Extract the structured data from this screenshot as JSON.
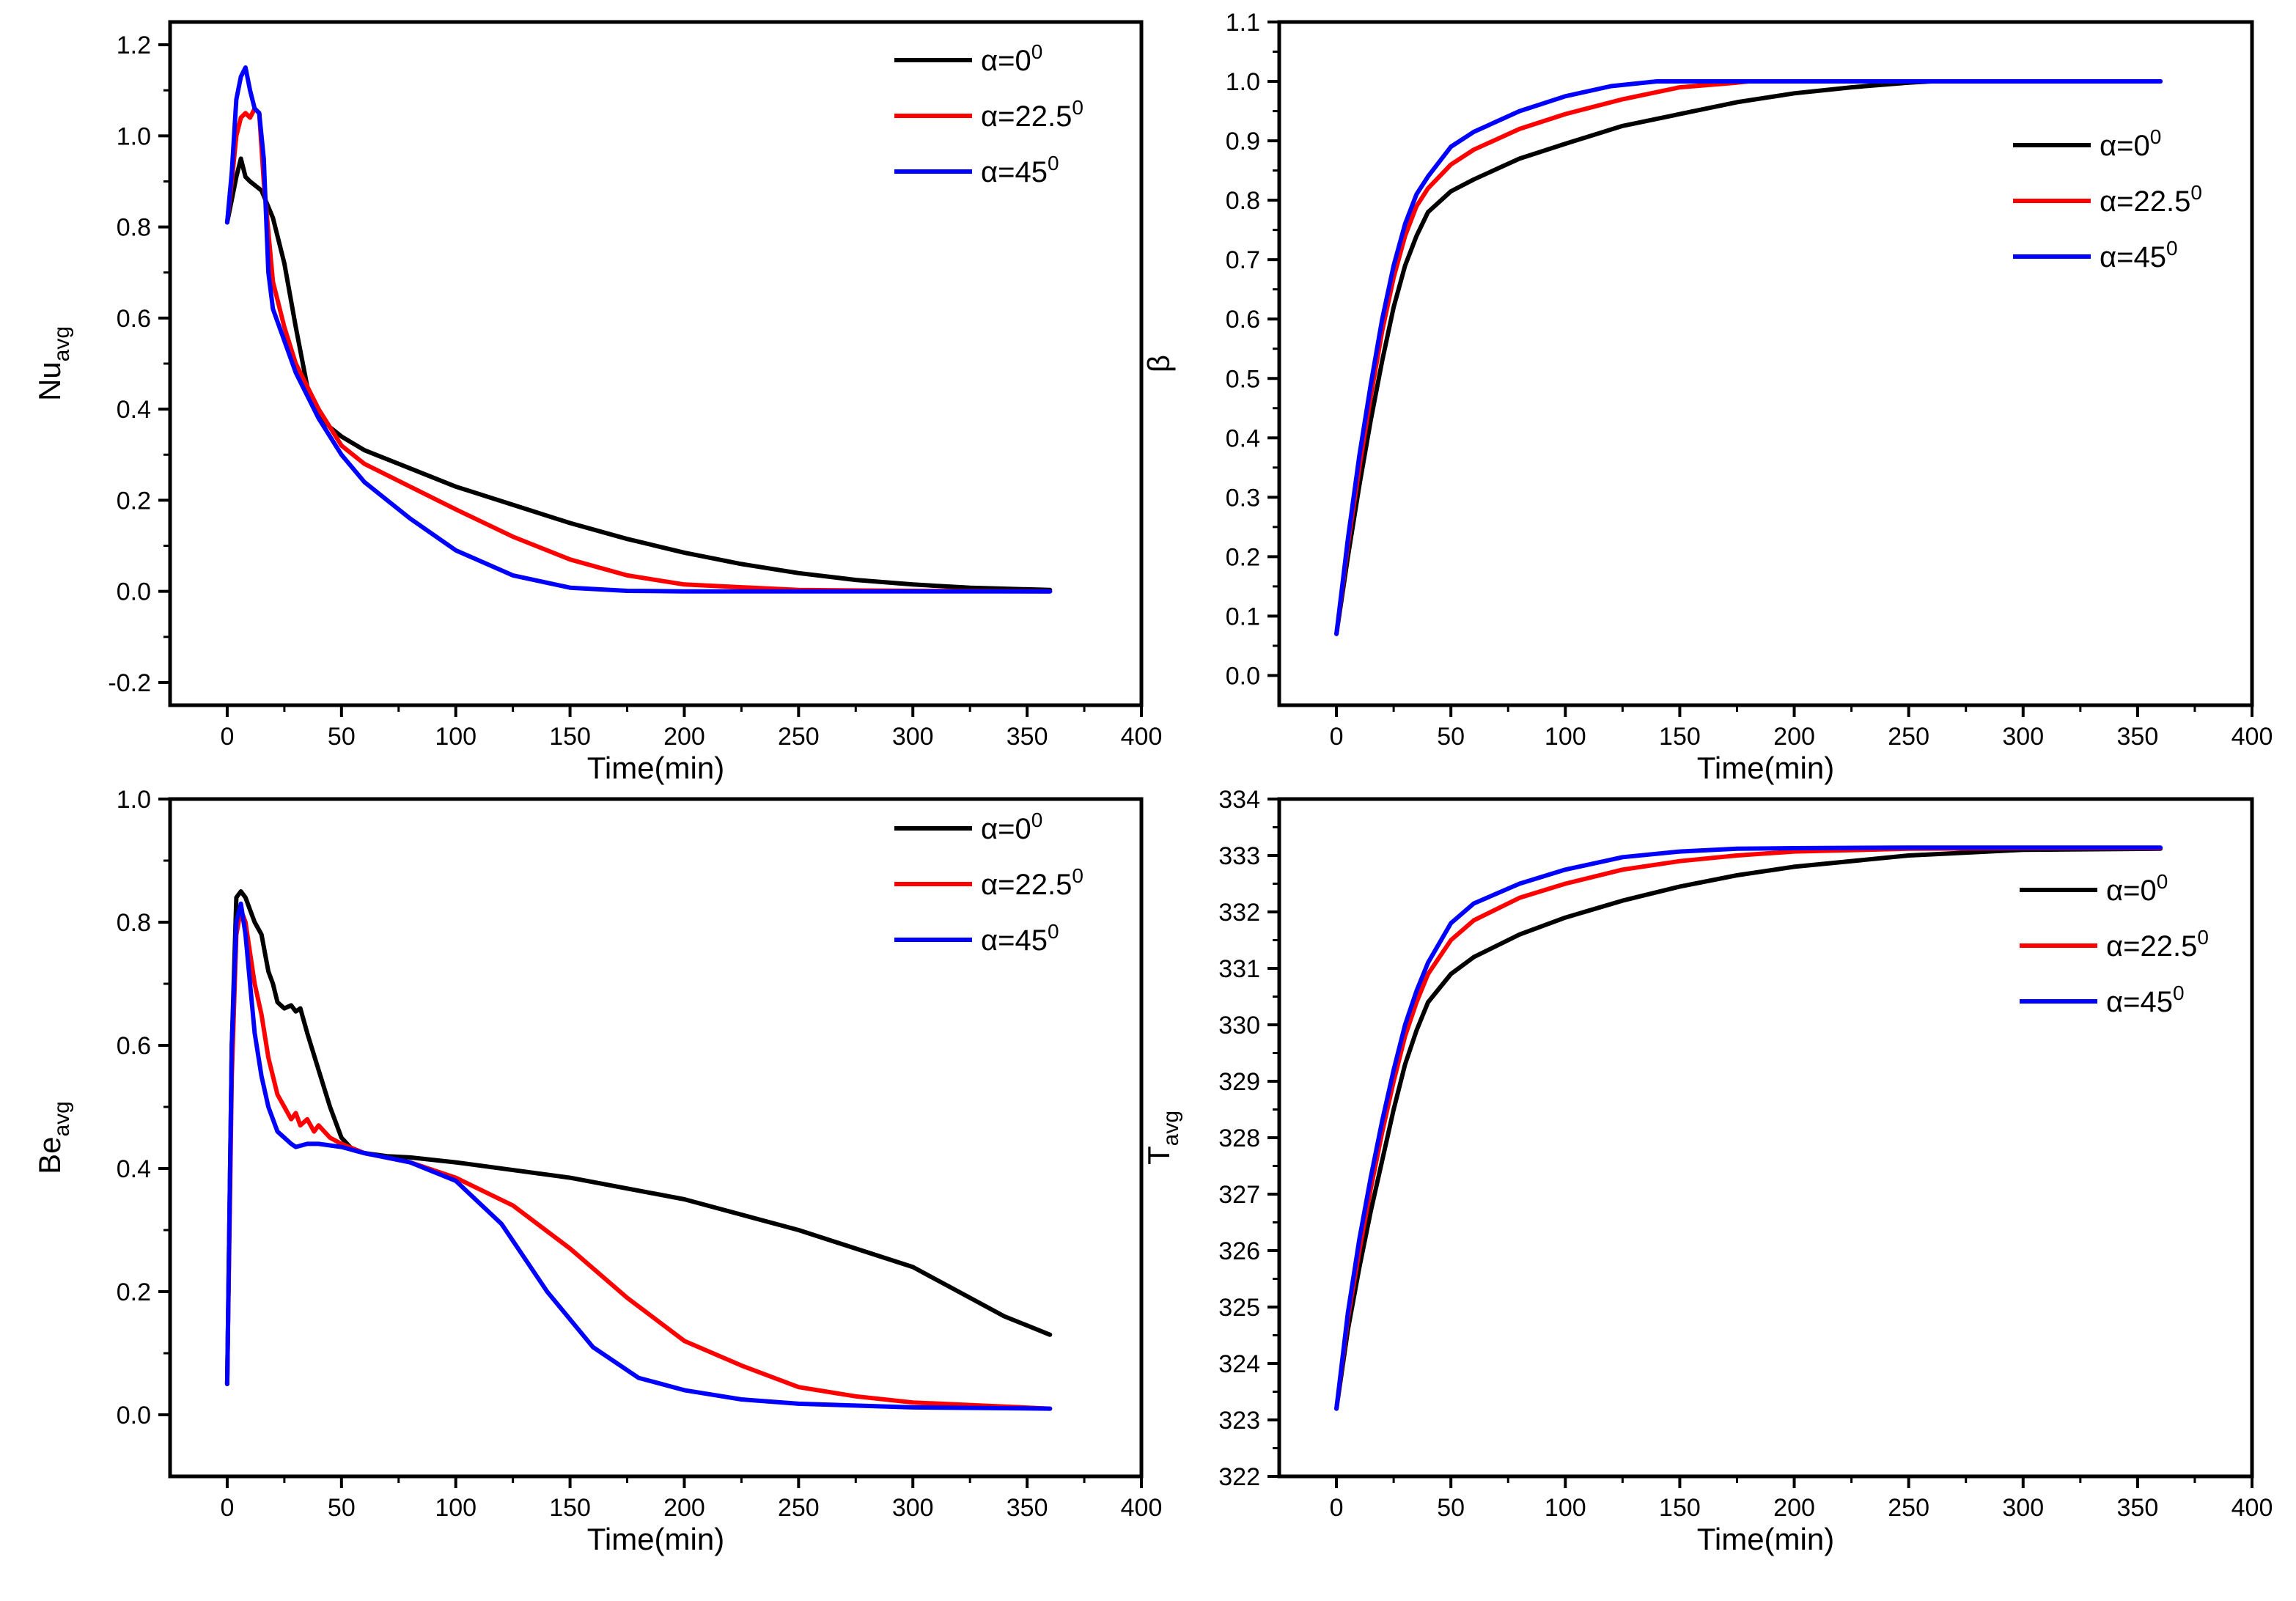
{
  "colors": {
    "black": "#000000",
    "red": "#ff0000",
    "blue": "#0000ff"
  },
  "chart_data": [
    {
      "type": "line",
      "ylabel": "Nu",
      "ylabel_sub": "avg",
      "xlabel": "Time(min)",
      "xlim": [
        -25,
        400
      ],
      "ylim": [
        -0.25,
        1.25
      ],
      "xticks": [
        0,
        50,
        100,
        150,
        200,
        250,
        300,
        350,
        400
      ],
      "xtick_labels": [
        "0",
        "50",
        "100",
        "150",
        "200",
        "250",
        "300",
        "350",
        "400"
      ],
      "yticks": [
        -0.2,
        0,
        0.2,
        0.4,
        0.6,
        0.8,
        1.0,
        1.2
      ],
      "ytick_labels": [
        "-0.2",
        "0.0",
        "0.2",
        "0.4",
        "0.6",
        "0.8",
        "1.0",
        "1.2"
      ],
      "legend": "top-right",
      "series": [
        {
          "name": "α=0",
          "sup": "0",
          "color": "#000000",
          "x": [
            0,
            2,
            4,
            6,
            8,
            10,
            15,
            20,
            25,
            30,
            35,
            40,
            45,
            50,
            60,
            80,
            100,
            125,
            150,
            175,
            200,
            225,
            250,
            275,
            300,
            325,
            360
          ],
          "y": [
            0.81,
            0.86,
            0.91,
            0.95,
            0.91,
            0.9,
            0.88,
            0.82,
            0.72,
            0.58,
            0.45,
            0.39,
            0.36,
            0.34,
            0.31,
            0.27,
            0.23,
            0.19,
            0.15,
            0.115,
            0.085,
            0.06,
            0.04,
            0.025,
            0.015,
            0.008,
            0.003
          ]
        },
        {
          "name": "α=22.5",
          "sup": "0",
          "color": "#ff0000",
          "x": [
            0,
            2,
            4,
            6,
            8,
            10,
            12,
            14,
            16,
            20,
            25,
            30,
            40,
            50,
            60,
            80,
            100,
            125,
            150,
            175,
            200,
            250,
            300,
            360
          ],
          "y": [
            0.81,
            0.9,
            1.0,
            1.04,
            1.05,
            1.04,
            1.06,
            1.05,
            0.9,
            0.68,
            0.58,
            0.5,
            0.4,
            0.32,
            0.28,
            0.23,
            0.18,
            0.12,
            0.07,
            0.035,
            0.015,
            0.003,
            0.001,
            0.0
          ]
        },
        {
          "name": "α=45",
          "sup": "0",
          "color": "#0000ff",
          "x": [
            0,
            2,
            4,
            6,
            8,
            10,
            12,
            14,
            16,
            18,
            20,
            25,
            30,
            40,
            50,
            60,
            80,
            100,
            125,
            150,
            175,
            200,
            250,
            360
          ],
          "y": [
            0.81,
            0.92,
            1.08,
            1.13,
            1.15,
            1.1,
            1.06,
            1.05,
            0.95,
            0.7,
            0.62,
            0.55,
            0.48,
            0.38,
            0.3,
            0.24,
            0.16,
            0.09,
            0.035,
            0.008,
            0.001,
            0.0,
            0.0,
            0.0
          ]
        }
      ]
    },
    {
      "type": "line",
      "ylabel": "β",
      "ylabel_sub": "",
      "xlabel": "Time(min)",
      "xlim": [
        -25,
        400
      ],
      "ylim": [
        -0.05,
        1.1
      ],
      "xticks": [
        0,
        50,
        100,
        150,
        200,
        250,
        300,
        350,
        400
      ],
      "xtick_labels": [
        "0",
        "50",
        "100",
        "150",
        "200",
        "250",
        "300",
        "350",
        "400"
      ],
      "yticks": [
        0,
        0.1,
        0.2,
        0.3,
        0.4,
        0.5,
        0.6,
        0.7,
        0.8,
        0.9,
        1.0,
        1.1
      ],
      "ytick_labels": [
        "0.0",
        "0.1",
        "0.2",
        "0.3",
        "0.4",
        "0.5",
        "0.6",
        "0.7",
        "0.8",
        "0.9",
        "1.0",
        "1.1"
      ],
      "legend": "upper-right",
      "series": [
        {
          "name": "α=0",
          "sup": "0",
          "color": "#000000",
          "x": [
            0,
            5,
            10,
            15,
            20,
            25,
            30,
            35,
            40,
            50,
            60,
            80,
            100,
            125,
            150,
            175,
            200,
            225,
            250,
            260,
            300,
            360
          ],
          "y": [
            0.07,
            0.2,
            0.32,
            0.43,
            0.53,
            0.62,
            0.69,
            0.74,
            0.78,
            0.815,
            0.835,
            0.87,
            0.895,
            0.925,
            0.945,
            0.965,
            0.98,
            0.99,
            0.998,
            1.0,
            1.0,
            1.0
          ]
        },
        {
          "name": "α=22.5",
          "sup": "0",
          "color": "#ff0000",
          "x": [
            0,
            5,
            10,
            15,
            20,
            25,
            30,
            35,
            40,
            50,
            60,
            80,
            100,
            125,
            150,
            175,
            180,
            200,
            360
          ],
          "y": [
            0.07,
            0.22,
            0.35,
            0.47,
            0.58,
            0.67,
            0.74,
            0.79,
            0.82,
            0.86,
            0.885,
            0.92,
            0.945,
            0.97,
            0.99,
            0.998,
            1.0,
            1.0,
            1.0
          ]
        },
        {
          "name": "α=45",
          "sup": "0",
          "color": "#0000ff",
          "x": [
            0,
            5,
            10,
            15,
            20,
            25,
            30,
            35,
            40,
            50,
            60,
            80,
            100,
            120,
            140,
            360
          ],
          "y": [
            0.07,
            0.23,
            0.37,
            0.49,
            0.6,
            0.69,
            0.76,
            0.81,
            0.84,
            0.89,
            0.915,
            0.95,
            0.975,
            0.992,
            1.0,
            1.0
          ]
        }
      ]
    },
    {
      "type": "line",
      "ylabel": "Be",
      "ylabel_sub": "avg",
      "xlabel": "Time(min)",
      "xlim": [
        -25,
        400
      ],
      "ylim": [
        -0.1,
        1.0
      ],
      "xticks": [
        0,
        50,
        100,
        150,
        200,
        250,
        300,
        350,
        400
      ],
      "xtick_labels": [
        "0",
        "50",
        "100",
        "150",
        "200",
        "250",
        "300",
        "350",
        "400"
      ],
      "yticks": [
        0,
        0.2,
        0.4,
        0.6,
        0.8,
        1.0
      ],
      "ytick_labels": [
        "0.0",
        "0.2",
        "0.4",
        "0.6",
        "0.8",
        "1.0"
      ],
      "legend": "top-right",
      "series": [
        {
          "name": "α=0",
          "sup": "0",
          "color": "#000000",
          "x": [
            0,
            2,
            4,
            6,
            8,
            10,
            12,
            15,
            18,
            20,
            22,
            25,
            28,
            30,
            32,
            35,
            40,
            45,
            50,
            55,
            60,
            70,
            80,
            100,
            150,
            200,
            250,
            300,
            320,
            340,
            360
          ],
          "y": [
            0.05,
            0.6,
            0.84,
            0.85,
            0.84,
            0.82,
            0.8,
            0.78,
            0.72,
            0.7,
            0.67,
            0.66,
            0.665,
            0.655,
            0.66,
            0.62,
            0.56,
            0.5,
            0.45,
            0.43,
            0.425,
            0.42,
            0.418,
            0.41,
            0.385,
            0.35,
            0.3,
            0.24,
            0.2,
            0.16,
            0.13
          ]
        },
        {
          "name": "α=22.5",
          "sup": "0",
          "color": "#ff0000",
          "x": [
            0,
            2,
            4,
            6,
            8,
            10,
            12,
            15,
            18,
            20,
            22,
            25,
            28,
            30,
            32,
            35,
            38,
            40,
            45,
            50,
            60,
            80,
            100,
            125,
            150,
            175,
            200,
            225,
            250,
            275,
            300,
            330,
            360
          ],
          "y": [
            0.05,
            0.55,
            0.78,
            0.82,
            0.8,
            0.75,
            0.7,
            0.65,
            0.58,
            0.55,
            0.52,
            0.5,
            0.48,
            0.49,
            0.47,
            0.48,
            0.46,
            0.47,
            0.45,
            0.44,
            0.425,
            0.41,
            0.385,
            0.34,
            0.27,
            0.19,
            0.12,
            0.08,
            0.045,
            0.03,
            0.02,
            0.015,
            0.01
          ]
        },
        {
          "name": "α=45",
          "sup": "0",
          "color": "#0000ff",
          "x": [
            0,
            2,
            4,
            6,
            8,
            10,
            12,
            15,
            18,
            20,
            22,
            25,
            28,
            30,
            35,
            40,
            50,
            60,
            80,
            100,
            120,
            140,
            160,
            180,
            200,
            225,
            250,
            300,
            360
          ],
          "y": [
            0.05,
            0.6,
            0.8,
            0.83,
            0.78,
            0.7,
            0.62,
            0.55,
            0.5,
            0.48,
            0.46,
            0.45,
            0.44,
            0.435,
            0.44,
            0.44,
            0.435,
            0.425,
            0.41,
            0.38,
            0.31,
            0.2,
            0.11,
            0.06,
            0.04,
            0.025,
            0.018,
            0.012,
            0.01
          ]
        }
      ]
    },
    {
      "type": "line",
      "ylabel": "T",
      "ylabel_sub": "avg",
      "xlabel": "Time(min)",
      "xlim": [
        -25,
        400
      ],
      "ylim": [
        322,
        334
      ],
      "xticks": [
        0,
        50,
        100,
        150,
        200,
        250,
        300,
        350,
        400
      ],
      "xtick_labels": [
        "0",
        "50",
        "100",
        "150",
        "200",
        "250",
        "300",
        "350",
        "400"
      ],
      "yticks": [
        322,
        323,
        324,
        325,
        326,
        327,
        328,
        329,
        330,
        331,
        332,
        333,
        334
      ],
      "ytick_labels": [
        "322",
        "323",
        "324",
        "325",
        "326",
        "327",
        "328",
        "329",
        "330",
        "331",
        "332",
        "333",
        "334"
      ],
      "legend": "upper-right",
      "series": [
        {
          "name": "α=0",
          "sup": "0",
          "color": "#000000",
          "x": [
            0,
            5,
            10,
            15,
            20,
            25,
            30,
            35,
            40,
            50,
            60,
            80,
            100,
            125,
            150,
            175,
            200,
            250,
            300,
            360
          ],
          "y": [
            323.2,
            324.6,
            325.7,
            326.7,
            327.6,
            328.5,
            329.3,
            329.9,
            330.4,
            330.9,
            331.2,
            331.6,
            331.9,
            332.2,
            332.45,
            332.65,
            332.8,
            333.0,
            333.1,
            333.12
          ]
        },
        {
          "name": "α=22.5",
          "sup": "0",
          "color": "#ff0000",
          "x": [
            0,
            5,
            10,
            15,
            20,
            25,
            30,
            35,
            40,
            50,
            60,
            80,
            100,
            125,
            150,
            175,
            200,
            250,
            300,
            360
          ],
          "y": [
            323.2,
            324.8,
            326.0,
            327.1,
            328.1,
            329.0,
            329.8,
            330.4,
            330.9,
            331.5,
            331.85,
            332.25,
            332.5,
            332.75,
            332.9,
            333.0,
            333.07,
            333.12,
            333.13,
            333.13
          ]
        },
        {
          "name": "α=45",
          "sup": "0",
          "color": "#0000ff",
          "x": [
            0,
            5,
            10,
            15,
            20,
            25,
            30,
            35,
            40,
            50,
            60,
            80,
            100,
            125,
            150,
            175,
            200,
            250,
            360
          ],
          "y": [
            323.2,
            324.9,
            326.2,
            327.3,
            328.3,
            329.2,
            330.0,
            330.6,
            331.1,
            331.8,
            332.15,
            332.5,
            332.75,
            332.97,
            333.07,
            333.12,
            333.13,
            333.14,
            333.14
          ]
        }
      ]
    }
  ]
}
